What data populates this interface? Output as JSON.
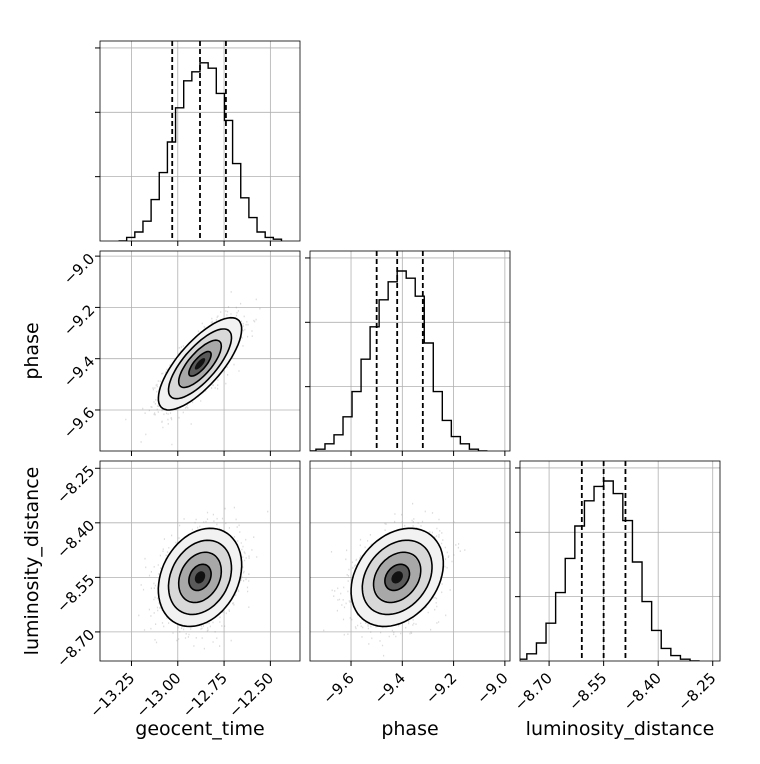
{
  "chart_data": {
    "type": "corner",
    "parameters": [
      {
        "name": "geocent_time",
        "range": [
          -13.42,
          -12.34
        ],
        "ticks": [
          -13.25,
          -13.0,
          -12.75,
          -12.5
        ],
        "tick_labels": [
          "−13.25",
          "−13.00",
          "−12.75",
          "−12.50"
        ],
        "quantiles": [
          -13.03,
          -12.88,
          -12.74
        ],
        "median": -12.88,
        "sigma": 0.1
      },
      {
        "name": "phase",
        "range": [
          -9.76,
          -8.98
        ],
        "ticks": [
          -9.6,
          -9.4,
          -9.2,
          -9.0
        ],
        "tick_labels": [
          "−9.6",
          "−9.4",
          "−9.2",
          "−9.0"
        ],
        "quantiles": [
          -9.5,
          -9.42,
          -9.32
        ],
        "median": -9.42,
        "sigma": 0.08
      },
      {
        "name": "luminosity_distance",
        "range": [
          -8.78,
          -8.23
        ],
        "ticks": [
          -8.7,
          -8.55,
          -8.4,
          -8.25
        ],
        "tick_labels": [
          "−8.70",
          "−8.55",
          "−8.40",
          "−8.25"
        ],
        "quantiles": [
          -8.61,
          -8.55,
          -8.49
        ],
        "median": -8.55,
        "sigma": 0.06
      }
    ],
    "histograms": [
      [
        0,
        0.02,
        0.05,
        0.11,
        0.23,
        0.38,
        0.55,
        0.74,
        0.89,
        0.94,
        0.99,
        0.96,
        0.82,
        0.67,
        0.43,
        0.24,
        0.13,
        0.05,
        0.02,
        0.01
      ],
      [
        0,
        0.01,
        0.04,
        0.09,
        0.19,
        0.33,
        0.51,
        0.69,
        0.84,
        0.94,
        1.0,
        0.96,
        0.86,
        0.6,
        0.33,
        0.17,
        0.08,
        0.04,
        0.01,
        0
      ],
      [
        0,
        0.01,
        0.04,
        0.1,
        0.21,
        0.38,
        0.57,
        0.75,
        0.89,
        0.97,
        1.0,
        0.93,
        0.78,
        0.55,
        0.33,
        0.17,
        0.07,
        0.03,
        0.01,
        0
      ]
    ],
    "correlations": {
      "1_0": 0.75,
      "2_0": 0.25,
      "2_1": 0.28
    },
    "grid": true
  },
  "axes_labels": {
    "x": [
      "geocent_time",
      "phase",
      "luminosity_distance"
    ],
    "y": [
      "phase",
      "luminosity_distance"
    ]
  }
}
